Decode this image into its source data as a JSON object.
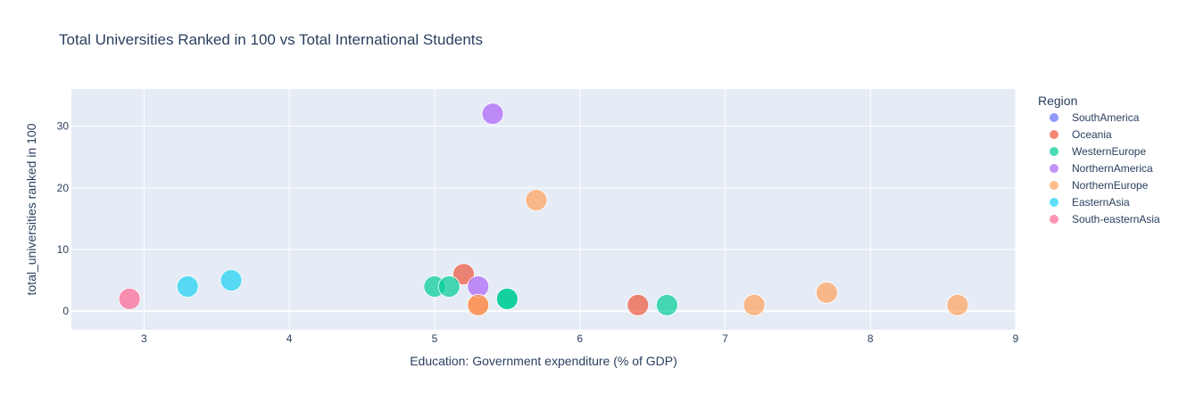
{
  "chart_data": {
    "type": "scatter",
    "title": "Total Universities Ranked in 100 vs Total International Students",
    "xlabel": "Education: Government expenditure (% of GDP)",
    "ylabel": "total_universities ranked in 100",
    "xlim": [
      2.5,
      9
    ],
    "ylim": [
      -3,
      36
    ],
    "xticks": [
      3,
      4,
      5,
      6,
      7,
      8,
      9
    ],
    "yticks": [
      0,
      10,
      20,
      30
    ],
    "grid": true,
    "legend_title": "Region",
    "legend_position": "right",
    "plot_background": "#e5ecf6",
    "series": [
      {
        "name": "SouthAmerica",
        "color": "#636efa",
        "points": []
      },
      {
        "name": "Oceania",
        "color": "#ef553b",
        "points": [
          {
            "x": 5.2,
            "y": 6
          },
          {
            "x": 6.4,
            "y": 1
          },
          {
            "x": 5.3,
            "y": 1
          }
        ]
      },
      {
        "name": "WesternEurope",
        "color": "#00cc96",
        "points": [
          {
            "x": 5.0,
            "y": 4
          },
          {
            "x": 5.1,
            "y": 4
          },
          {
            "x": 5.5,
            "y": 2
          },
          {
            "x": 5.5,
            "y": 2
          },
          {
            "x": 6.6,
            "y": 1
          }
        ]
      },
      {
        "name": "NorthernAmerica",
        "color": "#ab63fa",
        "points": [
          {
            "x": 5.4,
            "y": 32
          },
          {
            "x": 5.3,
            "y": 4
          }
        ]
      },
      {
        "name": "NorthernEurope",
        "color": "#ffa15a",
        "points": [
          {
            "x": 5.7,
            "y": 18
          },
          {
            "x": 5.3,
            "y": 1
          },
          {
            "x": 7.2,
            "y": 1
          },
          {
            "x": 7.7,
            "y": 3
          },
          {
            "x": 8.6,
            "y": 1
          }
        ]
      },
      {
        "name": "EasternAsia",
        "color": "#19d3f3",
        "points": [
          {
            "x": 3.3,
            "y": 4
          },
          {
            "x": 3.6,
            "y": 5
          }
        ]
      },
      {
        "name": "South-easternAsia",
        "color": "#ff6692",
        "points": [
          {
            "x": 2.9,
            "y": 2
          }
        ]
      }
    ]
  }
}
